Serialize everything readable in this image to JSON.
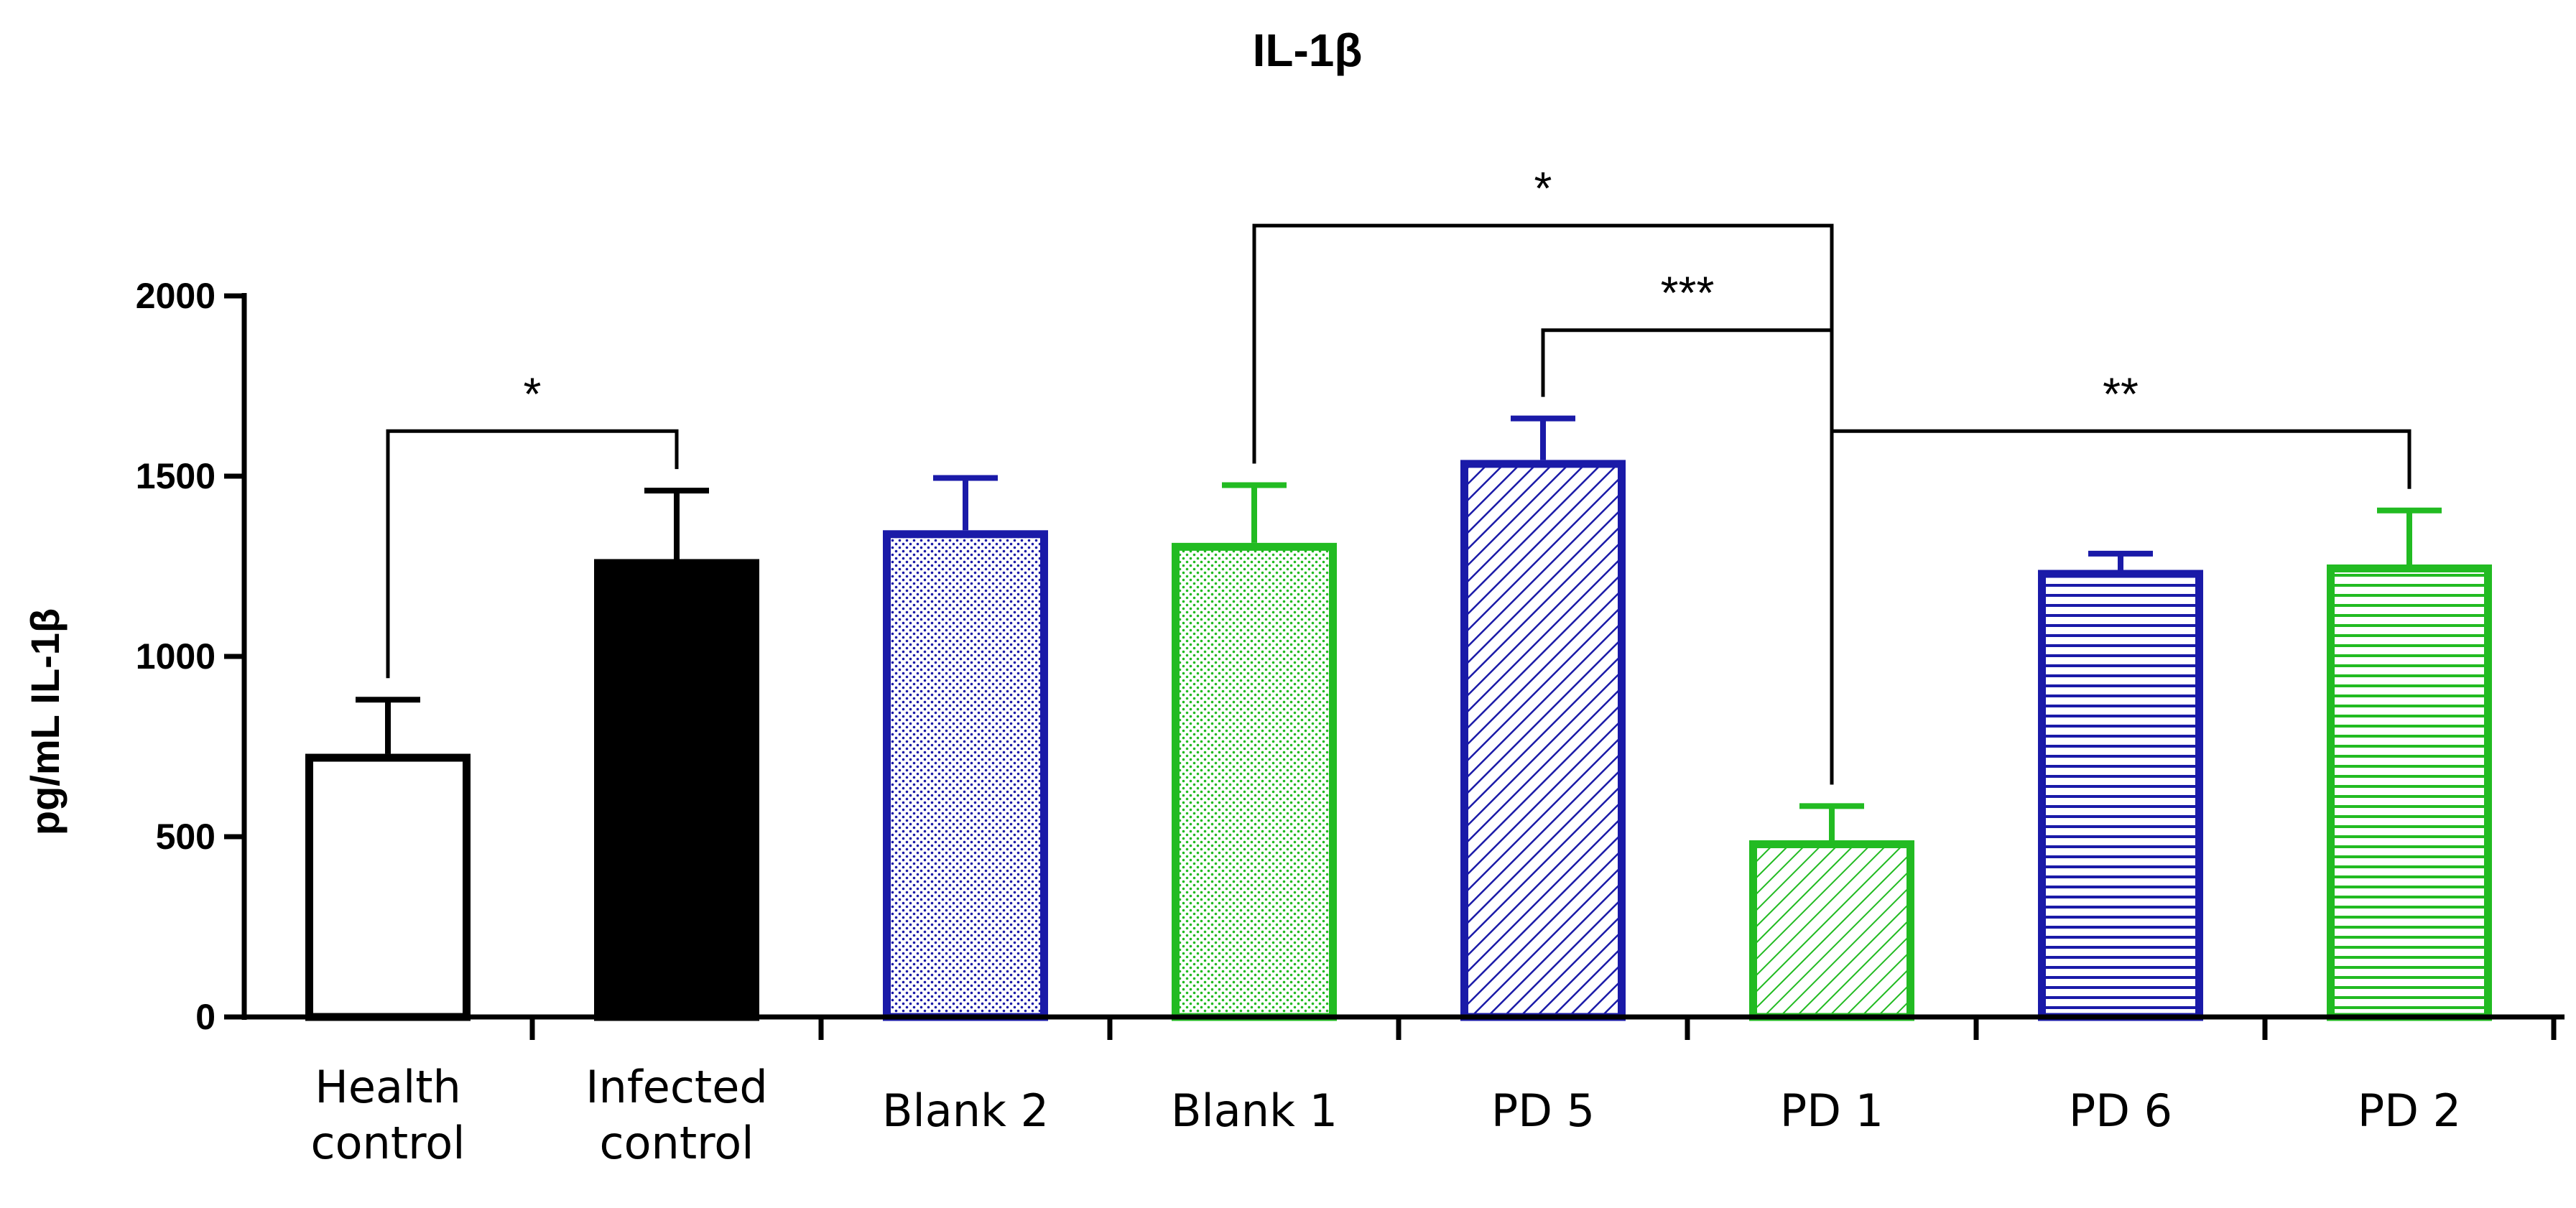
{
  "chart_data": {
    "type": "bar",
    "title": "IL-1β",
    "xlabel": "",
    "ylabel": "pg/mL IL-1β",
    "ylim": [
      0,
      2000
    ],
    "yticks": [
      "0",
      "500",
      "1000",
      "1500",
      "2000"
    ],
    "categories": [
      [
        "Health",
        "control"
      ],
      [
        "Infected",
        "control"
      ],
      [
        "Blank 2"
      ],
      [
        "Blank 1"
      ],
      [
        "PD 5"
      ],
      [
        "PD 1"
      ],
      [
        "PD 6"
      ],
      [
        "PD 2"
      ]
    ],
    "values": [
      730,
      1270,
      1350,
      1315,
      1545,
      490,
      1240,
      1255
    ],
    "errors": [
      150,
      190,
      145,
      160,
      115,
      95,
      45,
      150
    ],
    "bar_colors": [
      "#000000",
      "#000000",
      "#1a1aa8",
      "#22bb22",
      "#1a1aa8",
      "#22bb22",
      "#1a1aa8",
      "#22bb22"
    ],
    "fills": [
      "none",
      "solid",
      "dots",
      "dots",
      "diagonal-down",
      "diagonal-up",
      "horizontal",
      "horizontal"
    ],
    "significance": [
      {
        "from": 0,
        "to": 1,
        "label": "*",
        "y": 1625
      },
      {
        "from": 3,
        "to": 5,
        "label": "*",
        "y": 2195
      },
      {
        "from": 4,
        "to": 5,
        "label": "***",
        "y": 1905
      },
      {
        "from": 5,
        "to": 7,
        "label": "**",
        "y": 1625
      }
    ]
  }
}
